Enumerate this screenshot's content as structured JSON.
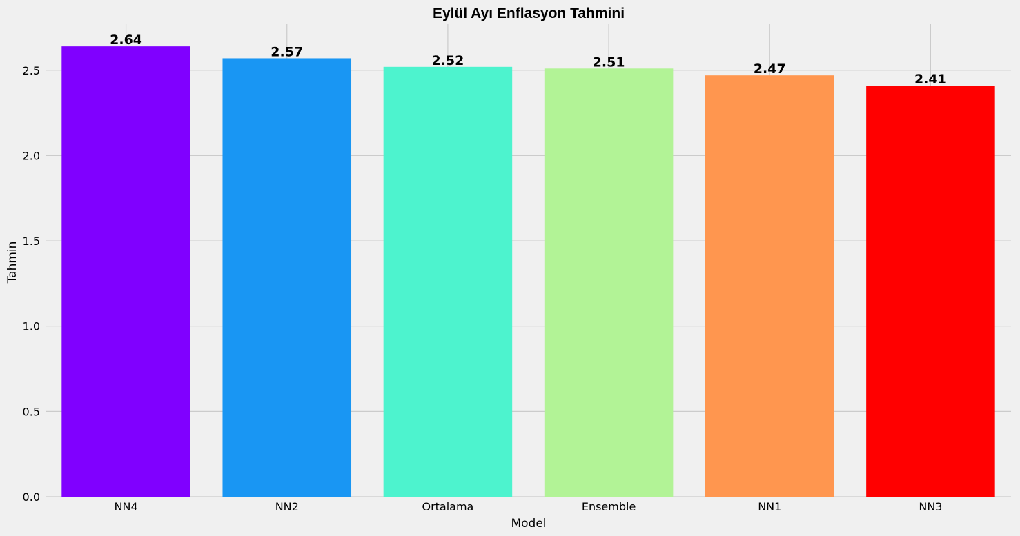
{
  "chart_data": {
    "type": "bar",
    "title": "Eylül Ayı Enflasyon Tahmini",
    "xlabel": "Model",
    "ylabel": "Tahmin",
    "categories": [
      "NN4",
      "NN2",
      "Ortalama",
      "Ensemble",
      "NN1",
      "NN3"
    ],
    "values": [
      2.64,
      2.57,
      2.52,
      2.51,
      2.47,
      2.41
    ],
    "data_labels": [
      "2.64",
      "2.57",
      "2.52",
      "2.51",
      "2.47",
      "2.41"
    ],
    "colors": [
      "#8000ff",
      "#1996f3",
      "#4df3ce",
      "#b2f396",
      "#ff964f",
      "#ff0000"
    ],
    "yticks": [
      0.0,
      0.5,
      1.0,
      1.5,
      2.0,
      2.5
    ],
    "ytick_labels": [
      "0.0",
      "0.5",
      "1.0",
      "1.5",
      "2.0",
      "2.5"
    ],
    "ylim": [
      0,
      2.77
    ],
    "grid": true,
    "legend": "none"
  }
}
